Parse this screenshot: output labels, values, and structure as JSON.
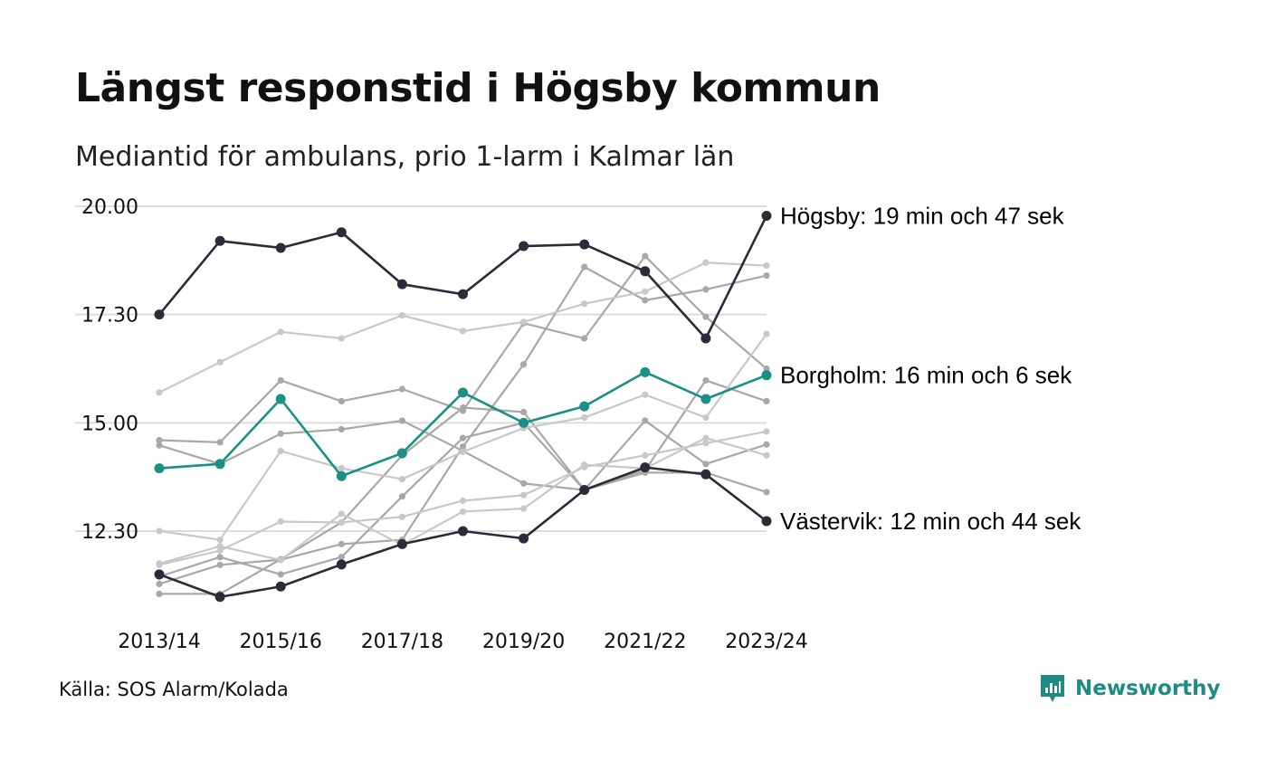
{
  "title": "Längst responstid i Högsby kommun",
  "subtitle": "Mediantid för ambulans, prio 1-larm i Kalmar län",
  "source": "Källa: SOS Alarm/Kolada",
  "brand": {
    "name": "Newsworthy",
    "icon": "newsworthy-logo-icon",
    "color": "#1e8c84"
  },
  "chart_data": {
    "type": "line",
    "x": [
      "2013/14",
      "2014/15",
      "2015/16",
      "2016/17",
      "2017/18",
      "2018/19",
      "2019/20",
      "2020/21",
      "2021/22",
      "2022/23",
      "2023/24"
    ],
    "x_tick_labels": [
      "2013/14",
      "2015/16",
      "2017/18",
      "2019/20",
      "2021/22",
      "2023/24"
    ],
    "y_tick_labels": [
      "20.00",
      "17.30",
      "15.00",
      "12.30"
    ],
    "y_tick_values": [
      20.0,
      17.5,
      15.0,
      12.5
    ],
    "ylim": [
      10.1,
      20.1
    ],
    "grid": true,
    "colors": {
      "highlight_dark": "#2b2b3a",
      "highlight_teal": "#1a9086",
      "background_series": [
        "#a8a8a8",
        "#c8c8c8"
      ]
    },
    "series": [
      {
        "name": "Högsby",
        "label": "Högsby: 19 min och 47 sek",
        "color": "#2b2b3a",
        "highlight": true,
        "values": [
          17.5,
          19.2,
          19.04,
          19.4,
          18.2,
          17.97,
          19.08,
          19.12,
          18.5,
          16.95,
          19.78
        ]
      },
      {
        "name": "Borgholm",
        "label": "Borgholm: 16 min och 6 sek",
        "color": "#1a9086",
        "highlight": true,
        "values": [
          13.95,
          14.05,
          15.55,
          13.77,
          14.3,
          15.7,
          15.0,
          15.38,
          16.17,
          15.55,
          16.1
        ]
      },
      {
        "name": "Västervik",
        "label": "Västervik: 12 min och 44 sek",
        "color": "#2b2b3a",
        "highlight": true,
        "values": [
          11.5,
          10.98,
          11.22,
          11.73,
          12.2,
          12.5,
          12.33,
          13.45,
          13.97,
          13.81,
          12.73
        ]
      },
      {
        "color": "#a8a8a8",
        "values": [
          14.6,
          14.55,
          15.98,
          15.5,
          15.78,
          15.28,
          17.3,
          16.95,
          18.85,
          17.45,
          16.25
        ]
      },
      {
        "color": "#a8a8a8",
        "values": [
          14.48,
          14.05,
          14.75,
          14.85,
          15.05,
          14.35,
          13.6,
          13.45,
          15.05,
          14.05,
          14.5
        ]
      },
      {
        "color": "#a8a8a8",
        "values": [
          11.45,
          11.9,
          11.5,
          11.9,
          13.3,
          14.65,
          15.0,
          13.45,
          13.9,
          15.98,
          15.5
        ]
      },
      {
        "color": "#a8a8a8",
        "values": [
          11.28,
          11.72,
          11.84,
          12.2,
          12.3,
          14.45,
          16.35,
          18.6,
          17.83,
          18.08,
          18.4
        ]
      },
      {
        "color": "#a8a8a8",
        "values": [
          11.05,
          11.05,
          11.85,
          12.7,
          14.25,
          15.35,
          15.25,
          13.45,
          13.85,
          13.85,
          13.4
        ]
      },
      {
        "color": "#c8c8c8",
        "values": [
          15.7,
          16.4,
          17.1,
          16.95,
          17.48,
          17.12,
          17.33,
          17.75,
          18.03,
          18.7,
          18.63
        ]
      },
      {
        "color": "#c8c8c8",
        "values": [
          12.5,
          12.3,
          14.35,
          13.95,
          13.7,
          14.33,
          14.88,
          15.12,
          15.65,
          15.12,
          17.05
        ]
      },
      {
        "color": "#c8c8c8",
        "values": [
          11.72,
          12.05,
          12.72,
          12.7,
          12.83,
          13.2,
          13.33,
          13.98,
          14.25,
          14.53,
          14.8
        ]
      },
      {
        "color": "#c8c8c8",
        "values": [
          11.75,
          12.15,
          11.83,
          12.9,
          12.18,
          12.95,
          13.02,
          14.03,
          13.95,
          14.65,
          14.25
        ]
      }
    ]
  }
}
